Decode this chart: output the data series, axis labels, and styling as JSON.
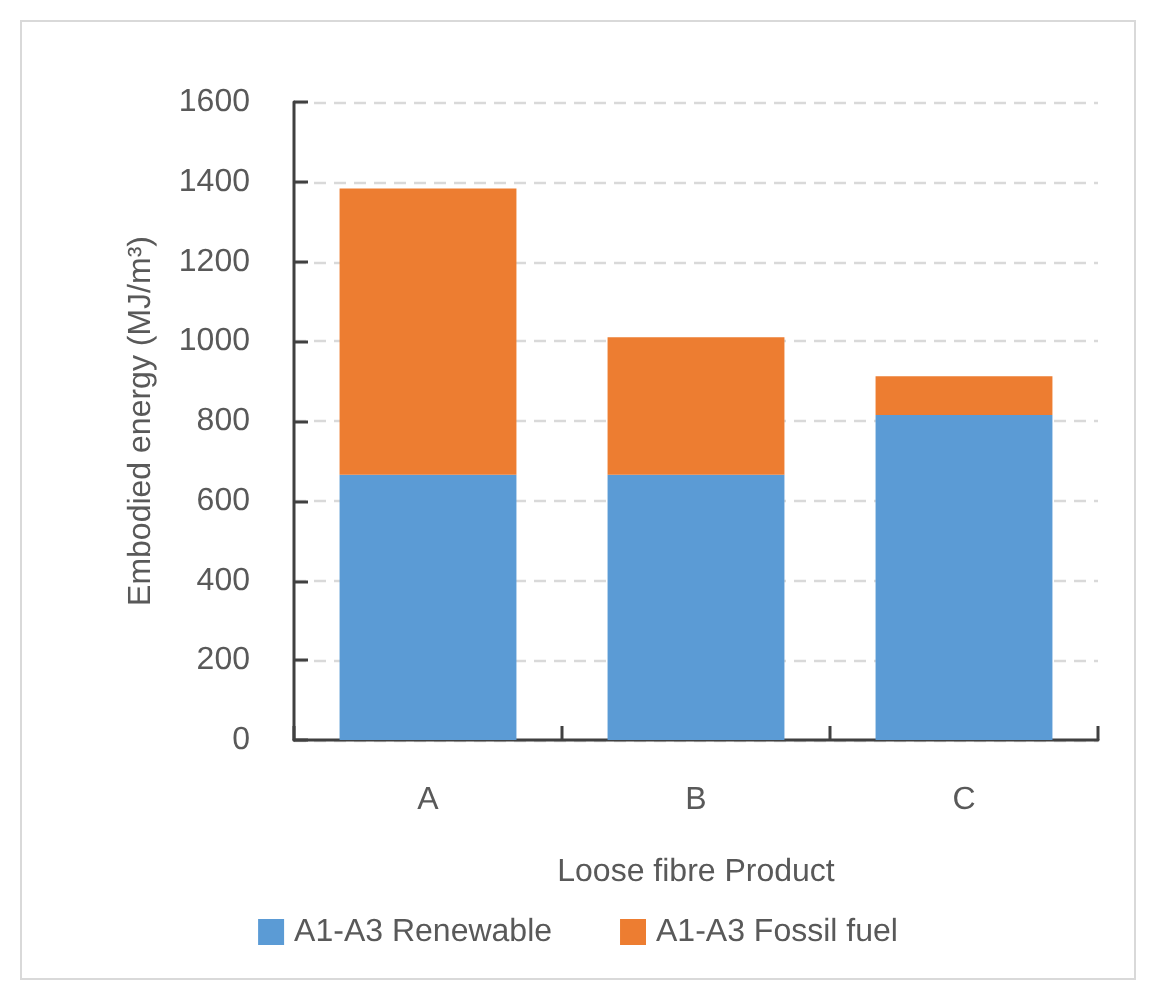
{
  "chart_data": {
    "type": "bar",
    "xlabel": "Loose fibre Product",
    "ylabel": "Embodied energy (MJ/m³)",
    "categories": [
      "A",
      "B",
      "C"
    ],
    "series": [
      {
        "name": "A1-A3 Renewable",
        "color": "#5b9bd5",
        "values": [
          665,
          665,
          815
        ]
      },
      {
        "name": "A1-A3 Fossil fuel",
        "color": "#ed7d31",
        "values": [
          718,
          345,
          97
        ]
      }
    ],
    "stacked": true,
    "ylim": [
      0,
      1600
    ],
    "yticks": [
      0,
      200,
      400,
      600,
      800,
      1000,
      1200,
      1400,
      1600
    ],
    "grid": "y",
    "legend": "bottom"
  }
}
